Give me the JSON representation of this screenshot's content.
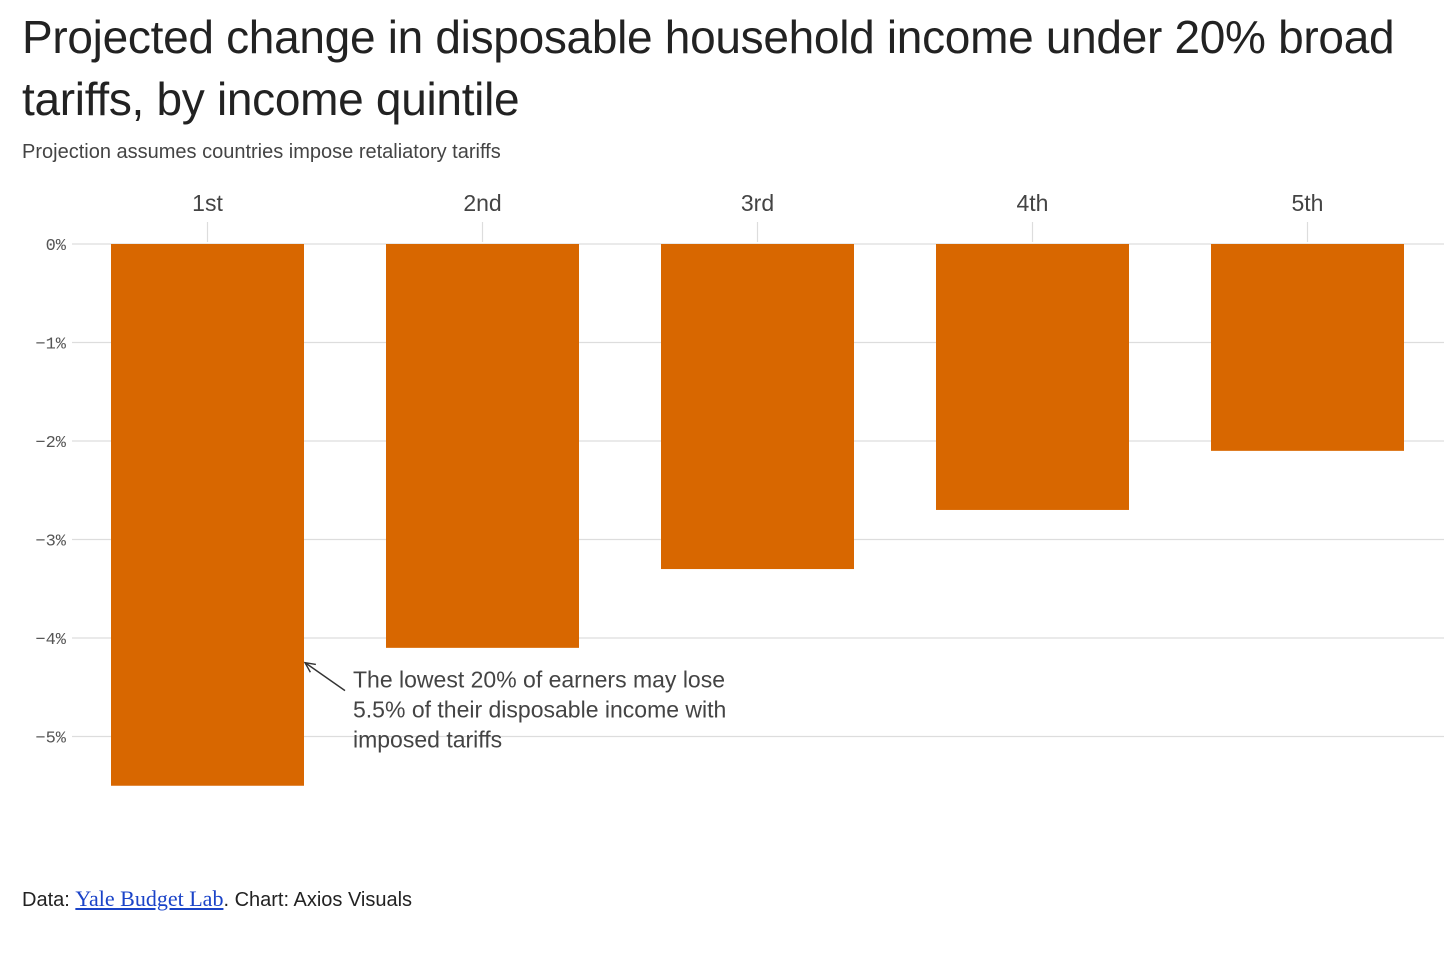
{
  "header": {
    "title": "Projected change in disposable household income under 20% broad tariffs, by income quintile",
    "subtitle": "Projection assumes countries impose retaliatory tariffs"
  },
  "footer": {
    "data_prefix": "Data: ",
    "source_link": "Yale Budget Lab",
    "credit": ". Chart: Axios Visuals"
  },
  "colors": {
    "bar": "#D86700",
    "grid": "#dddddd"
  },
  "chart_data": {
    "type": "bar",
    "title": "Projected change in disposable household income under 20% broad tariffs, by income quintile",
    "subtitle": "Projection assumes countries impose retaliatory tariffs",
    "categories": [
      "1st",
      "2nd",
      "3rd",
      "4th",
      "5th"
    ],
    "values": [
      -5.5,
      -4.1,
      -3.3,
      -2.7,
      -2.1
    ],
    "unit": "%",
    "ylim": [
      -5.5,
      0
    ],
    "yticks": [
      0,
      -1,
      -2,
      -3,
      -4,
      -5
    ],
    "ytick_labels": [
      "0%",
      "−1%",
      "−2%",
      "−3%",
      "−4%",
      "−5%"
    ],
    "xaxis_position": "top",
    "grid": true,
    "annotation": {
      "target_category": "1st",
      "lines": [
        "The lowest 20% of earners may lose",
        "5.5% of their disposable income with",
        "imposed tariffs"
      ]
    }
  }
}
